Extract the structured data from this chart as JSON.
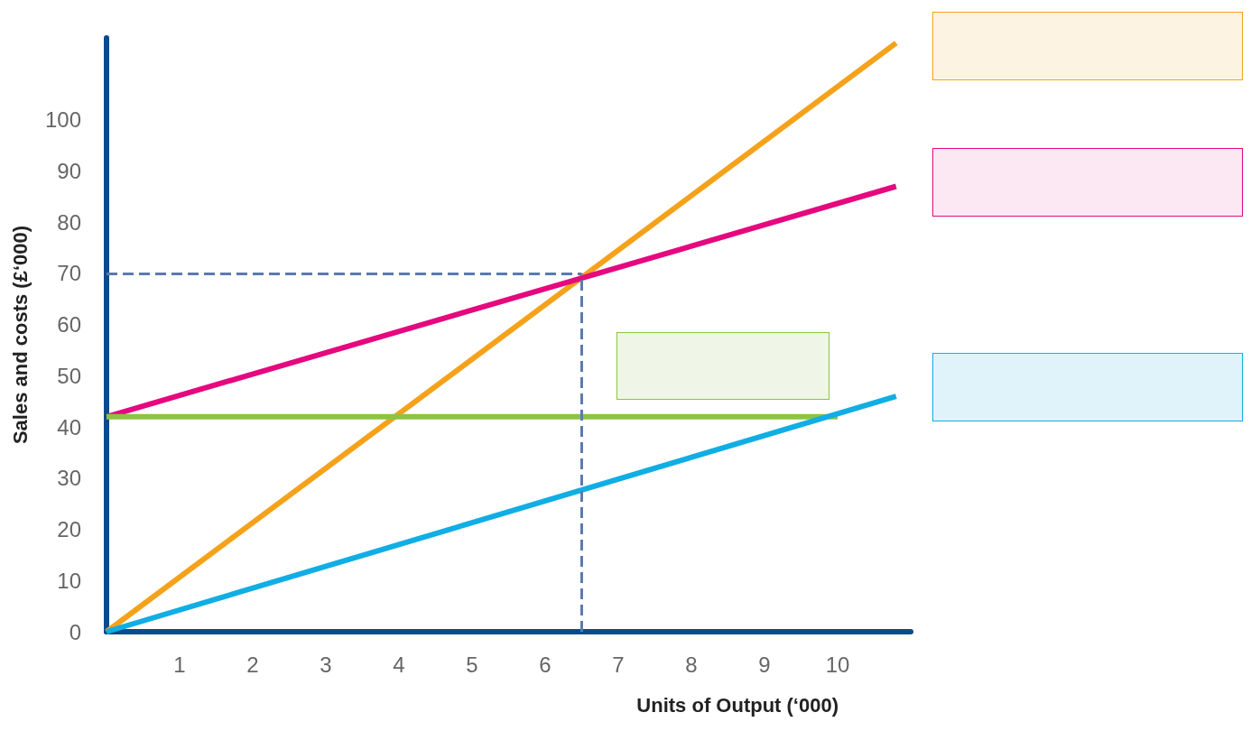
{
  "chart_data": {
    "type": "line",
    "xlabel": "Units of Output (‘000)",
    "ylabel": "Sales and costs (£‘000)",
    "series": [
      {
        "color": "#f5a21b",
        "x": [
          0,
          10.8
        ],
        "values": [
          0,
          115
        ]
      },
      {
        "color": "#e5087e",
        "x": [
          0,
          10.8
        ],
        "values": [
          42,
          87
        ]
      },
      {
        "color": "#8cc43f",
        "x": [
          0,
          10
        ],
        "values": [
          42,
          42
        ]
      },
      {
        "color": "#10aee4",
        "x": [
          0,
          10.8
        ],
        "values": [
          0,
          46
        ]
      }
    ],
    "xlim": [
      0,
      11
    ],
    "xticks": [
      1,
      2,
      3,
      4,
      5,
      6,
      7,
      8,
      9,
      10
    ],
    "ylim": [
      0,
      116
    ],
    "yticks": [
      0,
      10,
      20,
      30,
      40,
      50,
      60,
      70,
      80,
      90,
      100
    ],
    "ref_lines": [
      {
        "axis": "x",
        "value": 6.5,
        "color": "#5b7bb0",
        "line_style": "dashed"
      },
      {
        "axis": "y",
        "value": 70,
        "color": "#5b7bb0",
        "line_style": "dashed"
      }
    ],
    "grid": false,
    "marker": "none",
    "line_style": "solid"
  }
}
